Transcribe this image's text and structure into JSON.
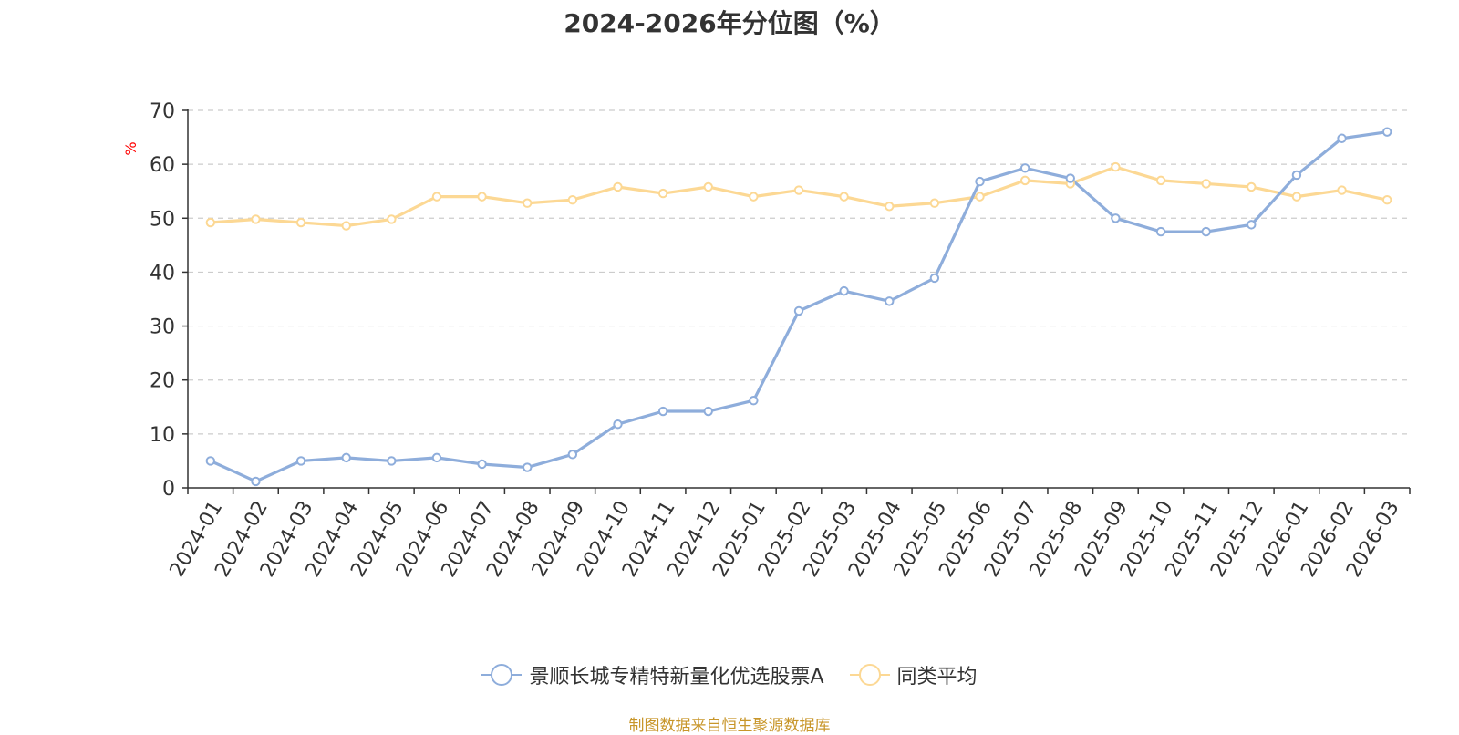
{
  "title": "2024-2026年分位图（%）",
  "source": "制图数据来自恒生聚源数据库",
  "chart_data": {
    "type": "line",
    "title": "2024-2026年分位图（%）",
    "ylabel": "%",
    "xlabel": "",
    "ylim": [
      0,
      70
    ],
    "yticks": [
      0,
      10,
      20,
      30,
      40,
      50,
      60,
      70
    ],
    "grid": true,
    "legend_position": "bottom",
    "categories": [
      "2024-01",
      "2024-02",
      "2024-03",
      "2024-04",
      "2024-05",
      "2024-06",
      "2024-07",
      "2024-08",
      "2024-09",
      "2024-10",
      "2024-11",
      "2024-12",
      "2025-01",
      "2025-02",
      "2025-03",
      "2025-04",
      "2025-05",
      "2025-06",
      "2025-07",
      "2025-08",
      "2025-09",
      "2025-10",
      "2025-11",
      "2025-12",
      "2026-01",
      "2026-02",
      "2026-03"
    ],
    "series": [
      {
        "name": "景顺长城专精特新量化优选股票A",
        "color": "#8eaddb",
        "values": [
          5.0,
          1.2,
          5.0,
          5.6,
          5.0,
          5.6,
          4.4,
          3.8,
          6.2,
          11.8,
          14.2,
          14.2,
          16.2,
          32.8,
          36.5,
          34.6,
          38.9,
          56.8,
          59.3,
          57.4,
          50.0,
          47.5,
          47.5,
          48.8,
          58.0,
          64.8,
          66.0
        ]
      },
      {
        "name": "同类平均",
        "color": "#fcd894",
        "values": [
          49.2,
          49.8,
          49.2,
          48.6,
          49.8,
          54.0,
          54.0,
          52.8,
          53.4,
          55.8,
          54.6,
          55.8,
          54.0,
          55.2,
          54.0,
          52.2,
          52.8,
          54.0,
          57.0,
          56.4,
          59.5,
          57.0,
          56.4,
          55.8,
          54.0,
          55.2,
          53.4
        ]
      }
    ]
  },
  "colors": {
    "axis": "#333333",
    "grid": "#cccccc",
    "ylabel": "#ff0000",
    "source": "#c8962a"
  }
}
